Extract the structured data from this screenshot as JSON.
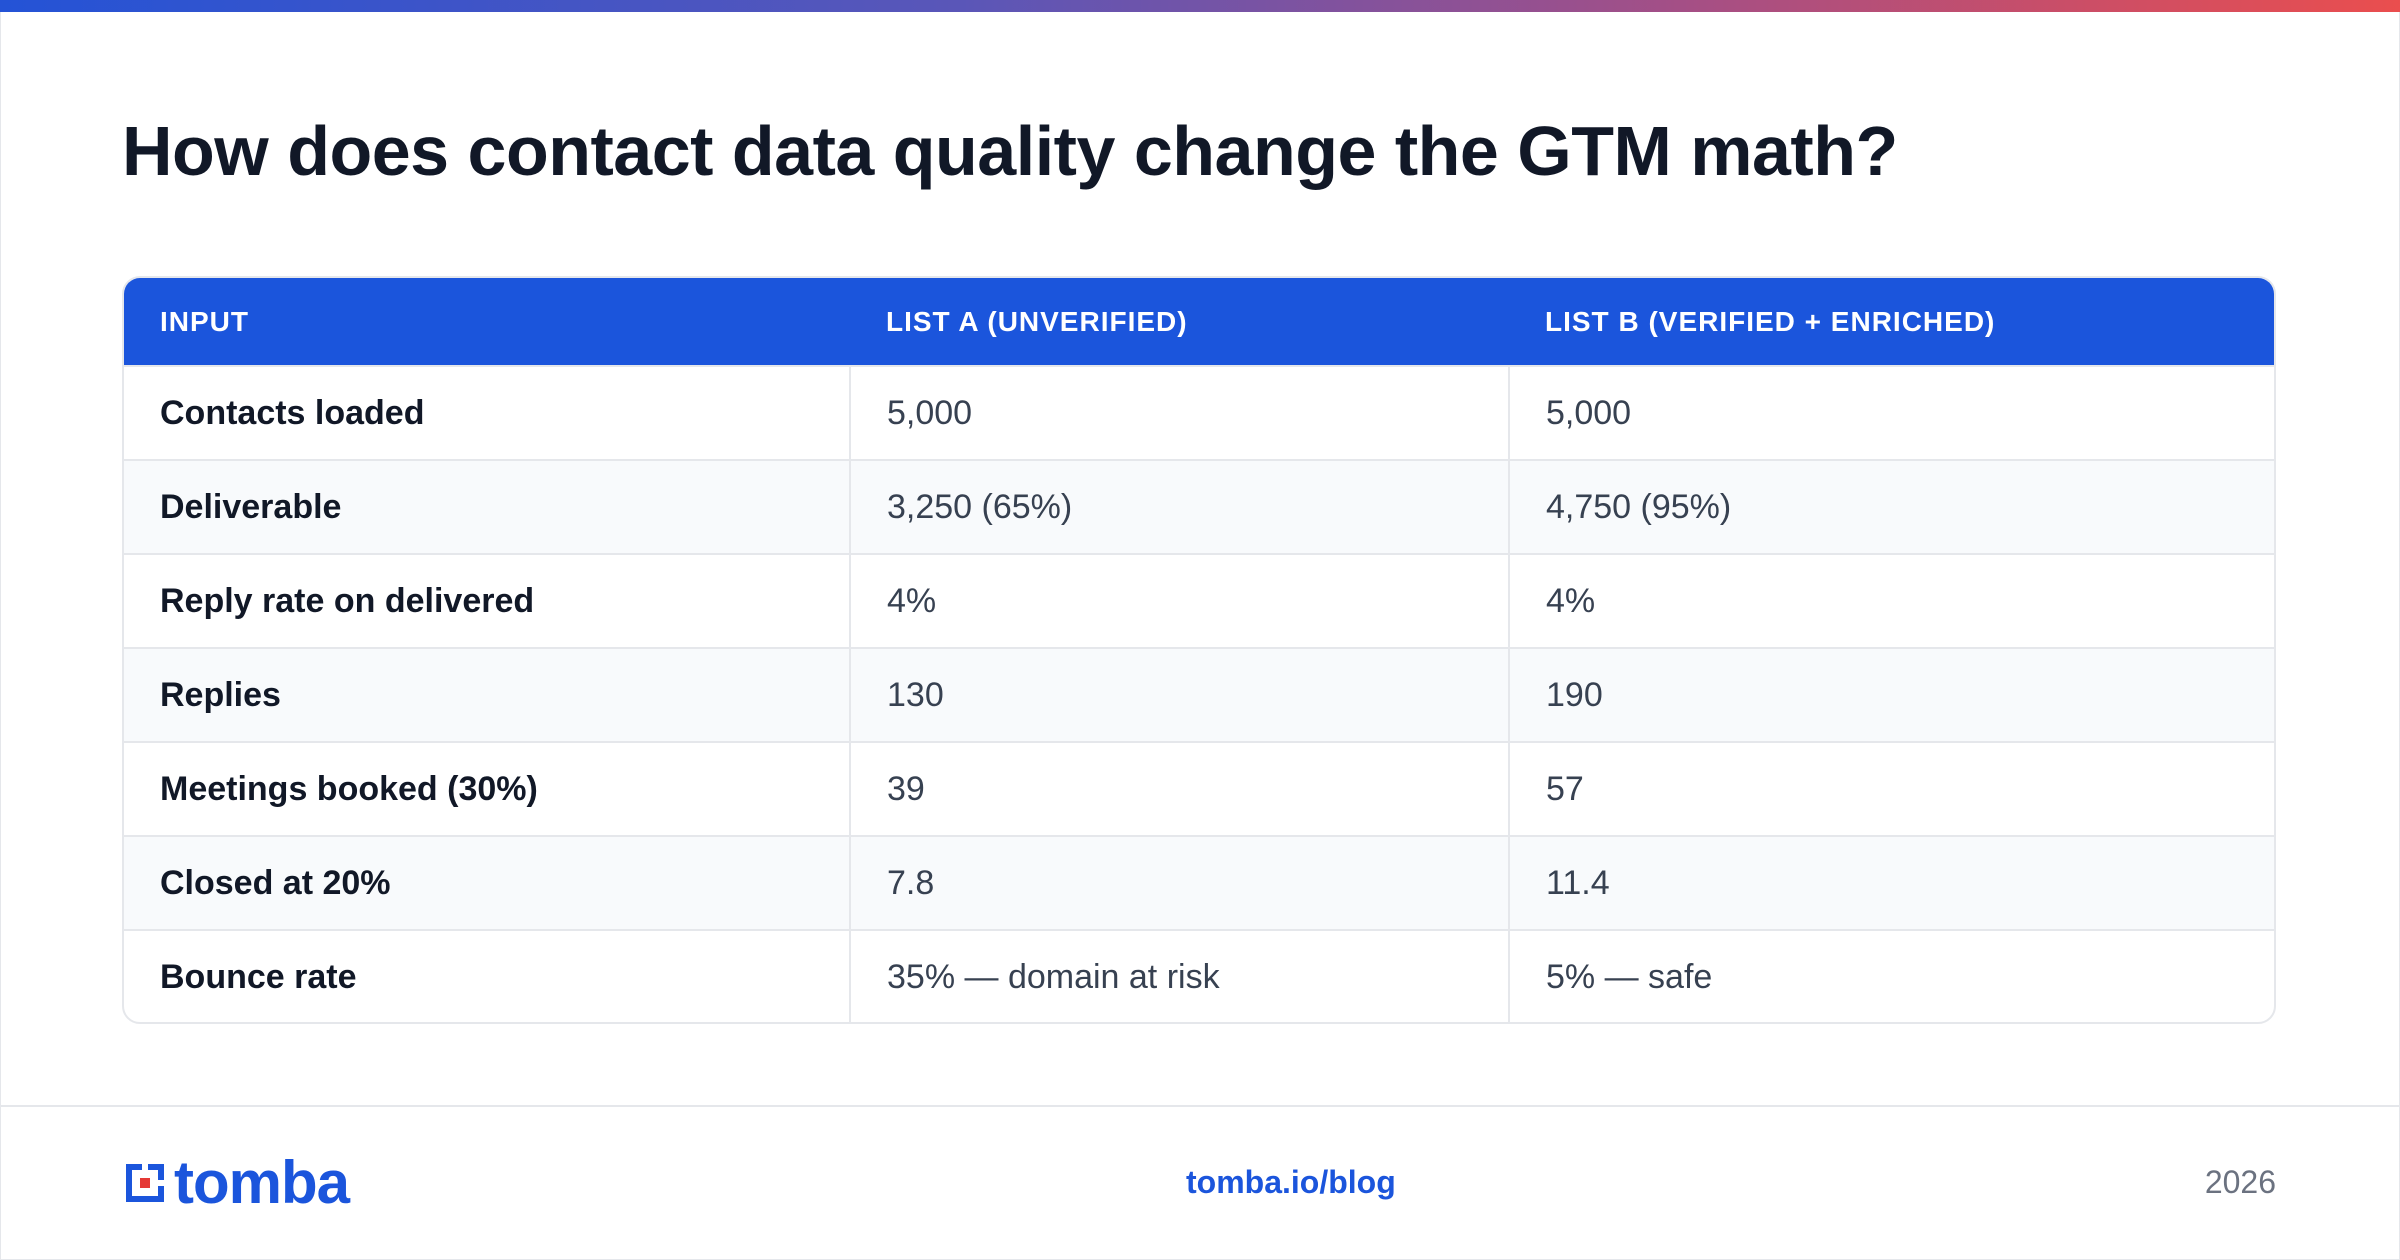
{
  "title": "How does contact data quality change the GTM math?",
  "table": {
    "headers": [
      "INPUT",
      "LIST A (UNVERIFIED)",
      "LIST B (VERIFIED + ENRICHED)"
    ],
    "rows": [
      {
        "input": "Contacts loaded",
        "list_a": "5,000",
        "list_b": "5,000"
      },
      {
        "input": "Deliverable",
        "list_a": "3,250 (65%)",
        "list_b": "4,750 (95%)"
      },
      {
        "input": "Reply rate on delivered",
        "list_a": "4%",
        "list_b": "4%"
      },
      {
        "input": "Replies",
        "list_a": "130",
        "list_b": "190"
      },
      {
        "input": "Meetings booked (30%)",
        "list_a": "39",
        "list_b": "57"
      },
      {
        "input": "Closed at 20%",
        "list_a": "7.8",
        "list_b": "11.4"
      },
      {
        "input": "Bounce rate",
        "list_a": "35% — domain at risk",
        "list_b": "5% — safe"
      }
    ]
  },
  "footer": {
    "logo_text": "tomba",
    "link": "tomba.io/blog",
    "year": "2026"
  },
  "colors": {
    "brand": "#1b55dc",
    "logo_accent": "#e53935",
    "gradient_start": "#2453d6",
    "gradient_end": "#ea4e4e"
  },
  "icons": {
    "logo_mark": "tomba-logo-icon"
  }
}
